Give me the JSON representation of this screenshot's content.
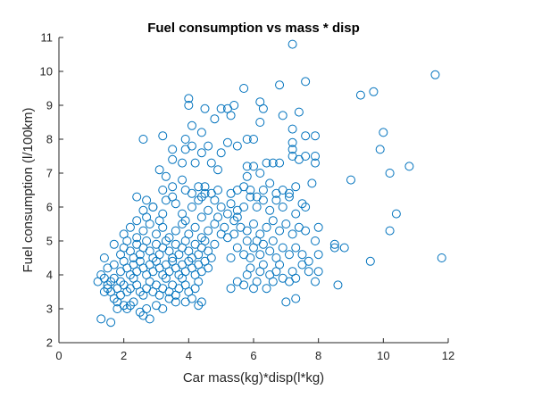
{
  "chart_data": {
    "type": "scatter",
    "title": "Fuel consumption vs mass * disp",
    "xlabel": "Car mass(kg)*disp(l*kg)",
    "ylabel": "Fuel consumption (l/100km)",
    "xlim": [
      0,
      12
    ],
    "ylim": [
      2,
      11
    ],
    "xticks": [
      0,
      2,
      4,
      6,
      8,
      10,
      12
    ],
    "yticks": [
      2,
      3,
      4,
      5,
      6,
      7,
      8,
      9,
      10,
      11
    ],
    "grid": false,
    "marker": "circle-open",
    "color": "#0072BD",
    "points": [
      [
        1.3,
        2.7
      ],
      [
        1.6,
        2.6
      ],
      [
        1.4,
        3.5
      ],
      [
        1.5,
        3.6
      ],
      [
        1.6,
        3.5
      ],
      [
        1.7,
        3.3
      ],
      [
        1.8,
        3.0
      ],
      [
        1.8,
        3.2
      ],
      [
        1.9,
        3.4
      ],
      [
        2.0,
        3.1
      ],
      [
        2.1,
        3.0
      ],
      [
        2.2,
        3.1
      ],
      [
        2.3,
        3.2
      ],
      [
        2.5,
        2.9
      ],
      [
        2.6,
        2.8
      ],
      [
        2.7,
        3.0
      ],
      [
        2.8,
        2.7
      ],
      [
        3.0,
        3.1
      ],
      [
        3.2,
        3.0
      ],
      [
        3.4,
        3.3
      ],
      [
        3.6,
        3.2
      ],
      [
        3.9,
        3.2
      ],
      [
        4.1,
        3.3
      ],
      [
        4.3,
        3.1
      ],
      [
        4.4,
        3.2
      ],
      [
        1.2,
        3.8
      ],
      [
        1.3,
        4.0
      ],
      [
        1.4,
        3.9
      ],
      [
        1.5,
        3.7
      ],
      [
        1.6,
        3.8
      ],
      [
        1.7,
        3.9
      ],
      [
        1.8,
        3.6
      ],
      [
        1.9,
        3.8
      ],
      [
        2.0,
        3.7
      ],
      [
        2.1,
        3.5
      ],
      [
        2.2,
        3.6
      ],
      [
        2.3,
        3.9
      ],
      [
        2.4,
        3.7
      ],
      [
        2.5,
        3.5
      ],
      [
        2.6,
        3.4
      ],
      [
        2.7,
        3.6
      ],
      [
        2.8,
        3.8
      ],
      [
        2.9,
        3.5
      ],
      [
        3.0,
        3.7
      ],
      [
        3.1,
        3.4
      ],
      [
        3.2,
        3.6
      ],
      [
        3.3,
        3.9
      ],
      [
        3.4,
        3.5
      ],
      [
        3.5,
        3.7
      ],
      [
        3.6,
        3.4
      ],
      [
        3.7,
        3.6
      ],
      [
        3.8,
        3.9
      ],
      [
        3.9,
        3.7
      ],
      [
        4.0,
        3.5
      ],
      [
        4.2,
        3.6
      ],
      [
        4.3,
        3.8
      ],
      [
        1.5,
        4.2
      ],
      [
        1.7,
        4.3
      ],
      [
        1.9,
        4.1
      ],
      [
        2.0,
        4.4
      ],
      [
        2.1,
        4.2
      ],
      [
        2.2,
        4.0
      ],
      [
        2.3,
        4.3
      ],
      [
        2.4,
        4.1
      ],
      [
        2.5,
        4.4
      ],
      [
        2.6,
        4.2
      ],
      [
        2.7,
        4.0
      ],
      [
        2.8,
        4.3
      ],
      [
        2.9,
        4.1
      ],
      [
        3.0,
        4.4
      ],
      [
        3.1,
        4.2
      ],
      [
        3.2,
        4.0
      ],
      [
        3.3,
        4.3
      ],
      [
        3.4,
        4.1
      ],
      [
        3.5,
        4.4
      ],
      [
        3.6,
        4.2
      ],
      [
        3.7,
        4.0
      ],
      [
        3.8,
        4.3
      ],
      [
        3.9,
        4.1
      ],
      [
        4.0,
        4.4
      ],
      [
        4.1,
        4.2
      ],
      [
        4.2,
        4.0
      ],
      [
        4.3,
        4.3
      ],
      [
        4.4,
        4.1
      ],
      [
        4.5,
        4.4
      ],
      [
        4.6,
        4.2
      ],
      [
        1.4,
        4.5
      ],
      [
        1.7,
        4.9
      ],
      [
        1.9,
        4.6
      ],
      [
        2.0,
        4.8
      ],
      [
        2.1,
        5.0
      ],
      [
        2.2,
        4.7
      ],
      [
        2.3,
        4.5
      ],
      [
        2.4,
        4.9
      ],
      [
        2.5,
        4.6
      ],
      [
        2.6,
        4.8
      ],
      [
        2.7,
        5.0
      ],
      [
        2.8,
        4.7
      ],
      [
        2.9,
        4.5
      ],
      [
        3.0,
        4.9
      ],
      [
        3.1,
        4.6
      ],
      [
        3.2,
        4.8
      ],
      [
        3.3,
        5.0
      ],
      [
        3.4,
        4.7
      ],
      [
        3.5,
        4.5
      ],
      [
        3.6,
        4.9
      ],
      [
        3.7,
        4.6
      ],
      [
        3.8,
        4.8
      ],
      [
        3.9,
        5.0
      ],
      [
        4.0,
        4.7
      ],
      [
        4.1,
        4.5
      ],
      [
        4.2,
        4.9
      ],
      [
        4.3,
        4.6
      ],
      [
        4.4,
        4.8
      ],
      [
        4.5,
        5.0
      ],
      [
        4.6,
        4.7
      ],
      [
        4.7,
        4.5
      ],
      [
        4.8,
        4.9
      ],
      [
        2.0,
        5.2
      ],
      [
        2.2,
        5.4
      ],
      [
        2.4,
        5.1
      ],
      [
        2.6,
        5.3
      ],
      [
        2.8,
        5.5
      ],
      [
        3.0,
        5.2
      ],
      [
        3.2,
        5.4
      ],
      [
        3.4,
        5.1
      ],
      [
        3.6,
        5.3
      ],
      [
        3.8,
        5.5
      ],
      [
        4.0,
        5.2
      ],
      [
        4.2,
        5.4
      ],
      [
        4.4,
        5.1
      ],
      [
        4.6,
        5.3
      ],
      [
        4.8,
        5.5
      ],
      [
        5.0,
        5.2
      ],
      [
        5.1,
        5.4
      ],
      [
        5.2,
        5.1
      ],
      [
        2.4,
        5.6
      ],
      [
        2.6,
        5.9
      ],
      [
        2.7,
        5.7
      ],
      [
        2.9,
        6.0
      ],
      [
        3.1,
        5.6
      ],
      [
        3.2,
        5.8
      ],
      [
        3.3,
        6.2
      ],
      [
        3.5,
        6.3
      ],
      [
        3.6,
        6.1
      ],
      [
        3.8,
        5.8
      ],
      [
        3.9,
        5.6
      ],
      [
        4.1,
        6.0
      ],
      [
        4.3,
        6.2
      ],
      [
        4.4,
        5.7
      ],
      [
        4.5,
        6.4
      ],
      [
        4.6,
        5.9
      ],
      [
        4.8,
        6.2
      ],
      [
        4.9,
        5.7
      ],
      [
        5.0,
        6.0
      ],
      [
        5.2,
        5.8
      ],
      [
        5.3,
        6.1
      ],
      [
        5.4,
        5.6
      ],
      [
        5.5,
        5.9
      ],
      [
        2.4,
        6.3
      ],
      [
        2.7,
        6.2
      ],
      [
        2.9,
        6.0
      ],
      [
        3.2,
        6.5
      ],
      [
        3.5,
        6.6
      ],
      [
        3.8,
        6.8
      ],
      [
        3.9,
        6.5
      ],
      [
        4.1,
        6.4
      ],
      [
        4.3,
        6.6
      ],
      [
        4.4,
        6.3
      ],
      [
        4.5,
        6.6
      ],
      [
        4.7,
        6.4
      ],
      [
        4.9,
        6.5
      ],
      [
        3.1,
        7.1
      ],
      [
        3.3,
        6.9
      ],
      [
        3.5,
        7.4
      ],
      [
        3.5,
        7.7
      ],
      [
        3.8,
        7.3
      ],
      [
        3.9,
        7.7
      ],
      [
        4.1,
        7.8
      ],
      [
        4.2,
        7.3
      ],
      [
        4.4,
        7.6
      ],
      [
        4.6,
        7.8
      ],
      [
        4.7,
        7.3
      ],
      [
        4.9,
        7.1
      ],
      [
        5.0,
        7.6
      ],
      [
        2.6,
        8.0
      ],
      [
        3.2,
        8.1
      ],
      [
        3.9,
        8.0
      ],
      [
        4.1,
        8.4
      ],
      [
        4.4,
        8.2
      ],
      [
        4.5,
        8.9
      ],
      [
        4.8,
        8.6
      ],
      [
        5.0,
        8.9
      ],
      [
        5.2,
        8.9
      ],
      [
        5.3,
        8.7
      ],
      [
        5.4,
        9.0
      ],
      [
        4.0,
        9.2
      ],
      [
        4.0,
        9.0
      ],
      [
        5.2,
        7.9
      ],
      [
        5.5,
        7.8
      ],
      [
        5.7,
        9.5
      ],
      [
        5.8,
        7.2
      ],
      [
        5.3,
        3.6
      ],
      [
        5.5,
        3.8
      ],
      [
        5.7,
        3.7
      ],
      [
        5.8,
        4.0
      ],
      [
        5.9,
        4.2
      ],
      [
        6.0,
        3.6
      ],
      [
        6.1,
        3.8
      ],
      [
        6.2,
        4.1
      ],
      [
        6.3,
        4.3
      ],
      [
        6.4,
        3.6
      ],
      [
        6.5,
        4.0
      ],
      [
        6.6,
        3.8
      ],
      [
        6.7,
        4.1
      ],
      [
        6.8,
        4.3
      ],
      [
        6.9,
        3.9
      ],
      [
        7.1,
        3.8
      ],
      [
        7.2,
        4.1
      ],
      [
        7.3,
        3.9
      ],
      [
        7.5,
        4.3
      ],
      [
        7.7,
        4.1
      ],
      [
        7.9,
        3.8
      ],
      [
        8.0,
        4.1
      ],
      [
        7.0,
        3.2
      ],
      [
        7.3,
        3.3
      ],
      [
        5.3,
        4.5
      ],
      [
        5.5,
        4.8
      ],
      [
        5.7,
        4.6
      ],
      [
        5.8,
        5.0
      ],
      [
        5.9,
        4.5
      ],
      [
        6.0,
        4.8
      ],
      [
        6.1,
        5.0
      ],
      [
        6.2,
        4.6
      ],
      [
        6.3,
        4.9
      ],
      [
        6.5,
        4.7
      ],
      [
        6.6,
        5.0
      ],
      [
        6.7,
        4.5
      ],
      [
        6.9,
        4.8
      ],
      [
        7.1,
        4.6
      ],
      [
        7.3,
        4.8
      ],
      [
        7.5,
        4.6
      ],
      [
        7.7,
        4.4
      ],
      [
        8.0,
        4.6
      ],
      [
        5.4,
        5.2
      ],
      [
        5.6,
        5.4
      ],
      [
        5.8,
        5.3
      ],
      [
        6.0,
        5.5
      ],
      [
        6.2,
        5.2
      ],
      [
        6.4,
        5.4
      ],
      [
        6.6,
        5.6
      ],
      [
        6.8,
        5.3
      ],
      [
        7.0,
        5.5
      ],
      [
        7.2,
        5.2
      ],
      [
        7.4,
        5.4
      ],
      [
        7.6,
        5.3
      ],
      [
        7.9,
        5.0
      ],
      [
        8.0,
        5.4
      ],
      [
        5.5,
        5.7
      ],
      [
        5.7,
        6.0
      ],
      [
        5.9,
        6.3
      ],
      [
        6.1,
        6.0
      ],
      [
        6.3,
        6.2
      ],
      [
        6.5,
        5.9
      ],
      [
        6.7,
        6.2
      ],
      [
        6.9,
        6.0
      ],
      [
        7.1,
        6.3
      ],
      [
        7.3,
        5.8
      ],
      [
        7.5,
        6.1
      ],
      [
        7.6,
        6.0
      ],
      [
        7.3,
        6.6
      ],
      [
        7.1,
        6.4
      ],
      [
        6.9,
        6.5
      ],
      [
        6.7,
        6.4
      ],
      [
        6.5,
        6.7
      ],
      [
        6.3,
        6.5
      ],
      [
        6.1,
        6.3
      ],
      [
        5.9,
        6.5
      ],
      [
        5.7,
        6.6
      ],
      [
        5.5,
        6.5
      ],
      [
        5.3,
        6.4
      ],
      [
        7.8,
        6.7
      ],
      [
        5.8,
        6.9
      ],
      [
        6.0,
        7.2
      ],
      [
        6.2,
        7.0
      ],
      [
        6.4,
        7.3
      ],
      [
        6.6,
        7.3
      ],
      [
        6.8,
        7.3
      ],
      [
        7.2,
        7.5
      ],
      [
        7.4,
        7.4
      ],
      [
        7.6,
        7.5
      ],
      [
        7.9,
        7.3
      ],
      [
        7.9,
        7.5
      ],
      [
        7.2,
        7.7
      ],
      [
        7.2,
        7.9
      ],
      [
        5.8,
        8.0
      ],
      [
        6.0,
        8.0
      ],
      [
        6.2,
        8.5
      ],
      [
        6.3,
        8.9
      ],
      [
        6.2,
        9.1
      ],
      [
        6.8,
        9.6
      ],
      [
        6.9,
        8.7
      ],
      [
        7.2,
        8.3
      ],
      [
        7.4,
        8.8
      ],
      [
        7.6,
        8.1
      ],
      [
        7.9,
        8.1
      ],
      [
        7.6,
        9.7
      ],
      [
        7.2,
        10.8
      ],
      [
        8.5,
        4.8
      ],
      [
        8.5,
        4.9
      ],
      [
        8.6,
        3.7
      ],
      [
        8.8,
        4.8
      ],
      [
        9.0,
        6.8
      ],
      [
        9.3,
        9.3
      ],
      [
        9.6,
        4.4
      ],
      [
        9.7,
        9.4
      ],
      [
        9.9,
        7.7
      ],
      [
        10.0,
        8.2
      ],
      [
        10.2,
        7.0
      ],
      [
        10.2,
        5.3
      ],
      [
        10.4,
        5.8
      ],
      [
        10.8,
        7.2
      ],
      [
        11.6,
        9.9
      ],
      [
        11.8,
        4.5
      ]
    ]
  }
}
